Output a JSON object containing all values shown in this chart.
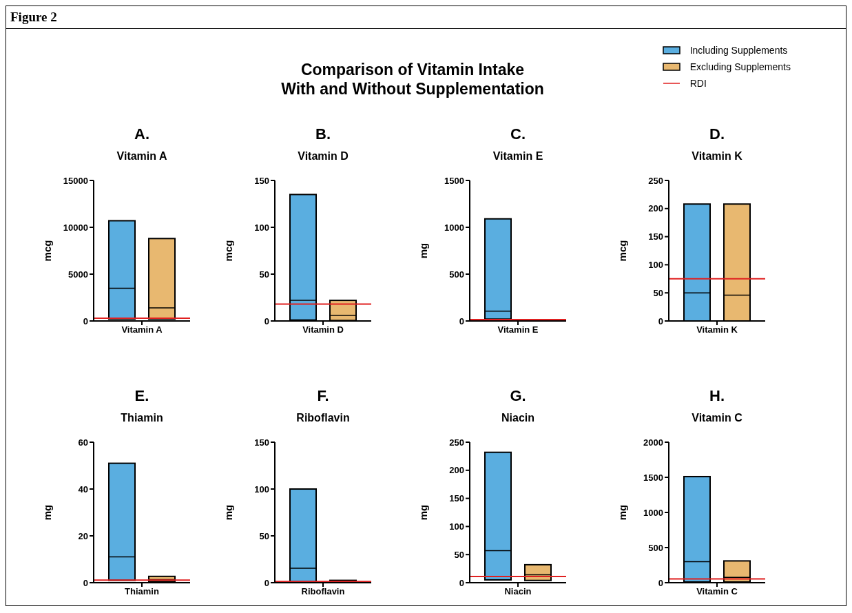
{
  "chart_data": [
    {
      "type": "other",
      "title": "Comparison of Vitamin Intake\nWith and Without Supplementation",
      "annotations": [
        "Figure 2"
      ]
    },
    {
      "type": "box",
      "title": "A.",
      "subtitle": "Vitamin A",
      "ylabel": "mcg",
      "categories": [
        "Vitamin A"
      ],
      "ylim": [
        0,
        15000
      ],
      "yticks": [
        0,
        5000,
        10000,
        15000
      ],
      "legend": "top right",
      "series": [
        {
          "name": "Including Supplements",
          "color": "#5aaee0",
          "boxes": [
            {
              "low": 200,
              "q1": 200,
              "median": 3500,
              "q3": 10700,
              "high": 10700
            }
          ]
        },
        {
          "name": "Excluding Supplements",
          "color": "#e8b870",
          "boxes": [
            {
              "low": 200,
              "q1": 200,
              "median": 1400,
              "q3": 8800,
              "high": 8800
            }
          ]
        }
      ],
      "ref_lines": [
        {
          "axis": "y",
          "value": 300,
          "label": "RDI",
          "color": "#e02020"
        }
      ]
    },
    {
      "type": "box",
      "title": "B.",
      "subtitle": "Vitamin D",
      "ylabel": "mcg",
      "categories": [
        "Vitamin D"
      ],
      "ylim": [
        0,
        150
      ],
      "yticks": [
        0,
        50,
        100,
        150
      ],
      "series": [
        {
          "color": "#5aaee0",
          "boxes": [
            {
              "low": 1,
              "q1": 1,
              "median": 22,
              "q3": 135,
              "high": 135
            }
          ]
        },
        {
          "color": "#e8b870",
          "boxes": [
            {
              "low": 0.5,
              "q1": 0.5,
              "median": 6,
              "q3": 22,
              "high": 22
            }
          ]
        }
      ],
      "ref_lines": [
        {
          "axis": "y",
          "value": 18,
          "color": "#e02020"
        }
      ]
    },
    {
      "type": "box",
      "title": "C.",
      "subtitle": "Vitamin E",
      "ylabel": "mg",
      "categories": [
        "Vitamin E"
      ],
      "ylim": [
        0,
        1500
      ],
      "yticks": [
        0,
        500,
        1000,
        1500
      ],
      "series": [
        {
          "color": "#5aaee0",
          "boxes": [
            {
              "low": 20,
              "q1": 20,
              "median": 105,
              "q3": 1090,
              "high": 1090
            }
          ]
        },
        {
          "color": "#e8b870",
          "boxes": [
            null
          ]
        }
      ],
      "ref_lines": [
        {
          "axis": "y",
          "value": 15,
          "color": "#e02020"
        }
      ]
    },
    {
      "type": "box",
      "title": "D.",
      "subtitle": "Vitamin K",
      "ylabel": "mcg",
      "categories": [
        "Vitamin K"
      ],
      "ylim": [
        0,
        250
      ],
      "yticks": [
        0,
        50,
        100,
        150,
        200,
        250
      ],
      "series": [
        {
          "color": "#5aaee0",
          "boxes": [
            {
              "low": 0,
              "q1": 0,
              "median": 50,
              "q3": 208,
              "high": 208
            }
          ]
        },
        {
          "color": "#e8b870",
          "boxes": [
            {
              "low": 0,
              "q1": 0,
              "median": 46,
              "q3": 208,
              "high": 208
            }
          ]
        }
      ],
      "ref_lines": [
        {
          "axis": "y",
          "value": 75,
          "color": "#e02020"
        }
      ]
    },
    {
      "type": "box",
      "title": "E.",
      "subtitle": "Thiamin",
      "ylabel": "mg",
      "categories": [
        "Thiamin"
      ],
      "ylim": [
        0,
        60
      ],
      "yticks": [
        0,
        20,
        40,
        60
      ],
      "series": [
        {
          "color": "#5aaee0",
          "boxes": [
            {
              "low": 1,
              "q1": 1,
              "median": 11,
              "q3": 51,
              "high": 51
            }
          ]
        },
        {
          "color": "#e8b870",
          "boxes": [
            {
              "low": 0.5,
              "q1": 0.5,
              "median": 1.3,
              "q3": 2.7,
              "high": 2.7
            }
          ]
        }
      ],
      "ref_lines": [
        {
          "axis": "y",
          "value": 1.1,
          "color": "#e02020"
        }
      ]
    },
    {
      "type": "box",
      "title": "F.",
      "subtitle": "Riboflavin",
      "ylabel": "mg",
      "categories": [
        "Riboflavin"
      ],
      "ylim": [
        0,
        150
      ],
      "yticks": [
        0,
        50,
        100,
        150
      ],
      "series": [
        {
          "color": "#5aaee0",
          "boxes": [
            {
              "low": 1,
              "q1": 1,
              "median": 15.5,
              "q3": 100,
              "high": 100
            }
          ]
        },
        {
          "color": "#e8b870",
          "boxes": [
            {
              "low": 0.3,
              "q1": 0.3,
              "median": 1.2,
              "q3": 2.5,
              "high": 2.5
            }
          ]
        }
      ],
      "ref_lines": [
        {
          "axis": "y",
          "value": 1.2,
          "color": "#e02020"
        }
      ]
    },
    {
      "type": "box",
      "title": "G.",
      "subtitle": "Niacin",
      "ylabel": "mg",
      "categories": [
        "Niacin"
      ],
      "ylim": [
        0,
        250
      ],
      "yticks": [
        0,
        50,
        100,
        150,
        200,
        250
      ],
      "series": [
        {
          "color": "#5aaee0",
          "boxes": [
            {
              "low": 5,
              "q1": 5,
              "median": 57,
              "q3": 232,
              "high": 232
            }
          ]
        },
        {
          "color": "#e8b870",
          "boxes": [
            {
              "low": 4,
              "q1": 4,
              "median": 14,
              "q3": 32,
              "high": 32
            }
          ]
        }
      ],
      "ref_lines": [
        {
          "axis": "y",
          "value": 11,
          "color": "#e02020"
        }
      ]
    },
    {
      "type": "box",
      "title": "H.",
      "subtitle": "Vitamin C",
      "ylabel": "mg",
      "categories": [
        "Vitamin C"
      ],
      "ylim": [
        0,
        2000
      ],
      "yticks": [
        0,
        500,
        1000,
        1500,
        2000
      ],
      "series": [
        {
          "color": "#5aaee0",
          "boxes": [
            {
              "low": 10,
              "q1": 10,
              "median": 300,
              "q3": 1510,
              "high": 1510
            }
          ]
        },
        {
          "color": "#e8b870",
          "boxes": [
            {
              "low": 10,
              "q1": 10,
              "median": 75,
              "q3": 310,
              "high": 310
            }
          ]
        }
      ],
      "ref_lines": [
        {
          "axis": "y",
          "value": 55,
          "color": "#e02020"
        }
      ]
    }
  ]
}
